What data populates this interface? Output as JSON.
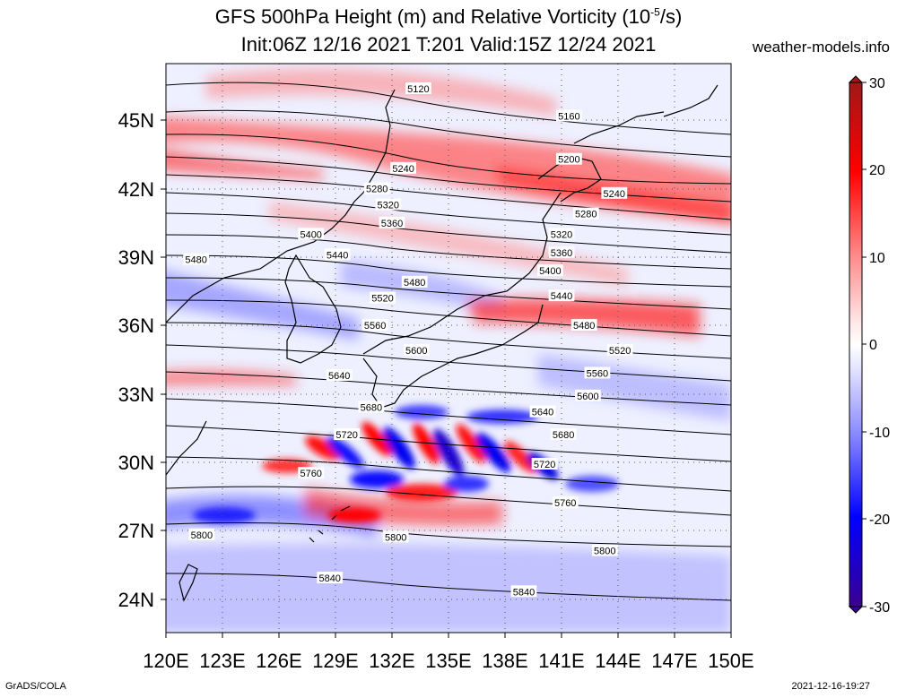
{
  "title_line1": "GFS 500hPa Height (m) and Relative Vorticity (10",
  "title_sup": "-5",
  "title_unit_end": "/s)",
  "title_line2": "Init:06Z 12/16 2021 T:201 Valid:15Z 12/24 2021",
  "site": "weather-models.info",
  "footer_left": "GrADS/COLA",
  "footer_right": "2021-12-16-19:27",
  "map": {
    "lon_range": [
      120,
      150
    ],
    "lat_range": [
      22.5,
      47.5
    ],
    "lon_ticks": [
      "120E",
      "123E",
      "126E",
      "129E",
      "132E",
      "135E",
      "138E",
      "141E",
      "144E",
      "147E",
      "150E"
    ],
    "lat_ticks": [
      "24N",
      "27N",
      "30N",
      "33N",
      "36N",
      "39N",
      "42N",
      "45N"
    ],
    "colors": {
      "positive": "#ff0000",
      "negative": "#0000ff",
      "neutral": "#ffffff",
      "contour": "#000000"
    },
    "contour_labels": [
      {
        "text": "5120",
        "lon": 133.4,
        "lat": 46.4
      },
      {
        "text": "5160",
        "lon": 141.4,
        "lat": 45.2
      },
      {
        "text": "5200",
        "lon": 141.4,
        "lat": 43.3
      },
      {
        "text": "5240",
        "lon": 132.6,
        "lat": 42.9
      },
      {
        "text": "5240",
        "lon": 143.8,
        "lat": 41.8
      },
      {
        "text": "5280",
        "lon": 131.2,
        "lat": 42.0
      },
      {
        "text": "5280",
        "lon": 142.3,
        "lat": 40.9
      },
      {
        "text": "5320",
        "lon": 131.8,
        "lat": 41.3
      },
      {
        "text": "5320",
        "lon": 141.0,
        "lat": 40.0
      },
      {
        "text": "5360",
        "lon": 132.0,
        "lat": 40.5
      },
      {
        "text": "5360",
        "lon": 141.0,
        "lat": 39.2
      },
      {
        "text": "5400",
        "lon": 127.7,
        "lat": 40.0
      },
      {
        "text": "5400",
        "lon": 140.4,
        "lat": 38.4
      },
      {
        "text": "5440",
        "lon": 129.1,
        "lat": 39.1
      },
      {
        "text": "5440",
        "lon": 141.0,
        "lat": 37.3
      },
      {
        "text": "5480",
        "lon": 121.6,
        "lat": 38.9
      },
      {
        "text": "5480",
        "lon": 133.2,
        "lat": 37.9
      },
      {
        "text": "5480",
        "lon": 142.2,
        "lat": 36.0
      },
      {
        "text": "5520",
        "lon": 131.5,
        "lat": 37.2
      },
      {
        "text": "5520",
        "lon": 144.1,
        "lat": 34.9
      },
      {
        "text": "5560",
        "lon": 131.1,
        "lat": 36.0
      },
      {
        "text": "5560",
        "lon": 142.9,
        "lat": 33.9
      },
      {
        "text": "5600",
        "lon": 133.3,
        "lat": 34.9
      },
      {
        "text": "5600",
        "lon": 142.4,
        "lat": 32.9
      },
      {
        "text": "5640",
        "lon": 129.2,
        "lat": 33.8
      },
      {
        "text": "5640",
        "lon": 140.0,
        "lat": 32.2
      },
      {
        "text": "5680",
        "lon": 130.9,
        "lat": 32.4
      },
      {
        "text": "5680",
        "lon": 141.1,
        "lat": 31.2
      },
      {
        "text": "5720",
        "lon": 129.6,
        "lat": 31.2
      },
      {
        "text": "5720",
        "lon": 140.1,
        "lat": 29.9
      },
      {
        "text": "5760",
        "lon": 127.7,
        "lat": 29.5
      },
      {
        "text": "5760",
        "lon": 141.2,
        "lat": 28.2
      },
      {
        "text": "5800",
        "lon": 121.9,
        "lat": 26.8
      },
      {
        "text": "5800",
        "lon": 132.2,
        "lat": 26.7
      },
      {
        "text": "5800",
        "lon": 143.3,
        "lat": 26.1
      },
      {
        "text": "5840",
        "lon": 128.7,
        "lat": 24.9
      },
      {
        "text": "5840",
        "lon": 139.0,
        "lat": 24.3
      }
    ]
  },
  "colorbar": {
    "levels": [
      "30",
      "20",
      "10",
      "0",
      "-10",
      "-20",
      "-30"
    ],
    "colors": [
      "#b0171f",
      "#ff0000",
      "#ff9090",
      "#ffffff",
      "#9090ff",
      "#0000ff",
      "#3a0090"
    ]
  }
}
